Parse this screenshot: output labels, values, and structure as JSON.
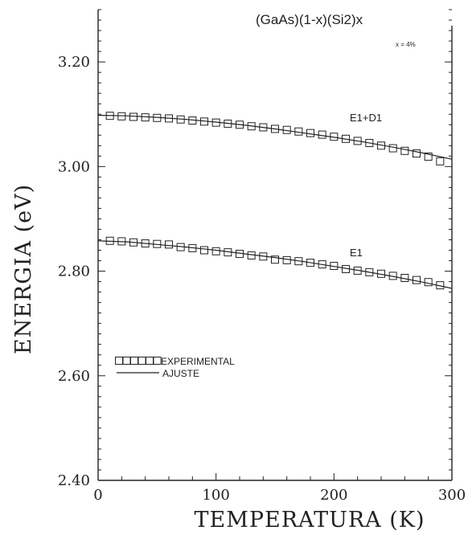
{
  "chart_data": {
    "type": "scatter",
    "title": "(GaAs)(1-x)(Si2)x",
    "annotation": "x = 4%",
    "xlabel": "TEMPERATURA (K)",
    "ylabel": "ENERGIA (eV)",
    "xlim": [
      0,
      300
    ],
    "ylim": [
      2.4,
      3.3
    ],
    "xticks": [
      "0",
      "100",
      "200",
      "300"
    ],
    "yticks": [
      "2.40",
      "2.60",
      "2.80",
      "3.00",
      "3.20"
    ],
    "grid": false,
    "legend_position": "left, below the curves",
    "legend": [
      {
        "label": "EXPERIMENTAL",
        "kind": "markers"
      },
      {
        "label": "AJUSTE",
        "kind": "line"
      }
    ],
    "series": [
      {
        "name": "E1+D1",
        "x": [
          10,
          20,
          30,
          40,
          50,
          60,
          70,
          80,
          90,
          100,
          110,
          120,
          130,
          140,
          150,
          160,
          170,
          180,
          190,
          200,
          210,
          220,
          230,
          240,
          250,
          260,
          270,
          280,
          290
        ],
        "experimental": [
          3.097,
          3.096,
          3.095,
          3.094,
          3.093,
          3.092,
          3.09,
          3.088,
          3.086,
          3.084,
          3.082,
          3.08,
          3.077,
          3.075,
          3.072,
          3.07,
          3.067,
          3.064,
          3.061,
          3.057,
          3.053,
          3.049,
          3.045,
          3.04,
          3.035,
          3.03,
          3.025,
          3.019,
          3.01
        ],
        "fit_x": [
          0,
          25,
          50,
          75,
          100,
          125,
          150,
          175,
          200,
          225,
          250,
          275,
          300
        ],
        "fit": [
          3.098,
          3.097,
          3.094,
          3.09,
          3.085,
          3.079,
          3.072,
          3.064,
          3.056,
          3.047,
          3.037,
          3.026,
          3.014
        ]
      },
      {
        "name": "E1",
        "x": [
          10,
          20,
          30,
          40,
          50,
          60,
          70,
          80,
          90,
          100,
          110,
          120,
          130,
          140,
          150,
          160,
          170,
          180,
          190,
          200,
          210,
          220,
          230,
          240,
          250,
          260,
          270,
          280,
          290
        ],
        "experimental": [
          2.858,
          2.857,
          2.855,
          2.853,
          2.852,
          2.851,
          2.846,
          2.844,
          2.84,
          2.838,
          2.836,
          2.833,
          2.83,
          2.828,
          2.822,
          2.821,
          2.819,
          2.816,
          2.813,
          2.81,
          2.804,
          2.801,
          2.798,
          2.795,
          2.791,
          2.787,
          2.783,
          2.779,
          2.773
        ],
        "fit_x": [
          0,
          25,
          50,
          75,
          100,
          125,
          150,
          175,
          200,
          225,
          250,
          275,
          300
        ],
        "fit": [
          2.858,
          2.856,
          2.851,
          2.846,
          2.84,
          2.833,
          2.826,
          2.818,
          2.809,
          2.8,
          2.79,
          2.779,
          2.767
        ]
      }
    ]
  }
}
